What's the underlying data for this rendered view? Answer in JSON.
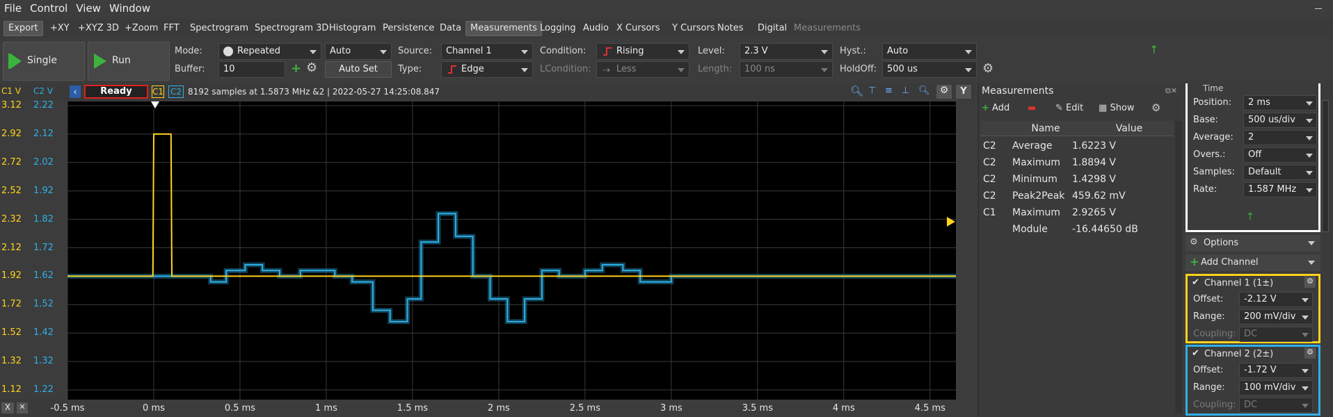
{
  "menu": [
    "File",
    "Control",
    "View",
    "Window"
  ],
  "tabs": [
    {
      "label": "Export",
      "active": false
    },
    {
      "label": "+XY"
    },
    {
      "label": "+XYZ 3D"
    },
    {
      "label": "+Zoom"
    },
    {
      "label": "FFT"
    },
    {
      "label": "Spectrogram"
    },
    {
      "label": "Spectrogram 3D"
    },
    {
      "label": "Histogram"
    },
    {
      "label": "Persistence"
    },
    {
      "label": "Data"
    },
    {
      "label": "Measurements"
    },
    {
      "label": "Logging"
    },
    {
      "label": "Audio"
    },
    {
      "label": "X Cursors"
    },
    {
      "label": "Y Cursors"
    },
    {
      "label": "Notes"
    },
    {
      "label": "Digital"
    },
    {
      "label": "Measurements"
    }
  ],
  "toolbar": {
    "single_label": "Single",
    "run_label": "Run",
    "mode_label": "Mode:",
    "mode_value": "Repeated",
    "mode_auto": "Auto",
    "buffer_label": "Buffer:",
    "buffer_value": "10",
    "autoset_label": "Auto Set",
    "source_label": "Source:",
    "source_value": "Channel 1",
    "type_label": "Type:",
    "type_value": "Edge",
    "condition_label": "Condition:",
    "condition_value": "Rising",
    "lcondition_label": "LCondition:",
    "lcondition_value": "Less",
    "level_label": "Level:",
    "level_value": "2.3 V",
    "length_label": "Length:",
    "length_value": "100 ns",
    "hyst_label": "Hyst.:",
    "hyst_value": "Auto",
    "holdoff_label": "HoldOff:",
    "holdoff_value": "500 us"
  },
  "scope": {
    "c1_axis_title": "C1 V",
    "c2_axis_title": "C2 V",
    "status": "Ready",
    "ch1_tag": "C1",
    "ch2_tag": "C2",
    "info": "8192 samples at 1.5873 MHz &2 | 2022-05-27 14:25:08.847",
    "c1_ticks": [
      "3.12",
      "2.92",
      "2.72",
      "2.52",
      "2.32",
      "2.12",
      "1.92",
      "1.72",
      "1.52",
      "1.32",
      "1.12"
    ],
    "c2_ticks": [
      "2.22",
      "2.12",
      "2.02",
      "1.92",
      "1.82",
      "1.72",
      "1.62",
      "1.52",
      "1.42",
      "1.32",
      "1.22"
    ],
    "x_ticks": [
      "-0.5 ms",
      "0 ms",
      "0.5 ms",
      "1 ms",
      "1.5 ms",
      "2 ms",
      "2.5 ms",
      "3 ms",
      "3.5 ms",
      "4 ms",
      "4.5 ms"
    ],
    "colors": {
      "c1": "#ffd21e",
      "c2": "#2fb0e8",
      "status_border": "#e02020"
    }
  },
  "chart_data": {
    "type": "line",
    "title": "",
    "xlabel": "",
    "ylabel": "",
    "x_unit": "ms",
    "xlim": [
      -0.5,
      4.65
    ],
    "series": [
      {
        "name": "C1",
        "axis": "C1 V",
        "ylim": [
          1.12,
          3.12
        ],
        "x": [
          -0.5,
          -0.005,
          0.0,
          0.1,
          0.105,
          4.65
        ],
        "y": [
          1.92,
          1.92,
          2.92,
          2.92,
          1.92,
          1.92
        ]
      },
      {
        "name": "C2",
        "axis": "C2 V",
        "ylim": [
          1.22,
          2.22
        ],
        "x": [
          -0.5,
          0.33,
          0.33,
          0.42,
          0.42,
          0.53,
          0.53,
          0.63,
          0.63,
          0.73,
          0.73,
          0.85,
          0.85,
          1.05,
          1.05,
          1.15,
          1.15,
          1.27,
          1.27,
          1.37,
          1.37,
          1.47,
          1.47,
          1.55,
          1.55,
          1.65,
          1.65,
          1.75,
          1.75,
          1.85,
          1.85,
          1.95,
          1.95,
          2.05,
          2.05,
          2.15,
          2.15,
          2.25,
          2.25,
          2.35,
          2.35,
          2.5,
          2.5,
          2.6,
          2.6,
          2.72,
          2.72,
          2.82,
          2.82,
          3.0,
          3.0,
          3.1,
          3.1,
          4.65
        ],
        "y": [
          1.62,
          1.62,
          1.6,
          1.6,
          1.64,
          1.64,
          1.66,
          1.66,
          1.64,
          1.64,
          1.62,
          1.62,
          1.64,
          1.64,
          1.62,
          1.62,
          1.6,
          1.6,
          1.5,
          1.5,
          1.46,
          1.46,
          1.54,
          1.54,
          1.74,
          1.74,
          1.84,
          1.84,
          1.76,
          1.76,
          1.62,
          1.62,
          1.54,
          1.54,
          1.46,
          1.46,
          1.54,
          1.54,
          1.64,
          1.64,
          1.62,
          1.62,
          1.64,
          1.64,
          1.66,
          1.66,
          1.64,
          1.64,
          1.6,
          1.6,
          1.62,
          1.62,
          1.62,
          1.62
        ]
      }
    ],
    "grid": true
  },
  "measurements": {
    "title": "Measurements",
    "add_label": "Add",
    "edit_label": "Edit",
    "show_label": "Show",
    "col_name": "Name",
    "col_value": "Value",
    "rows": [
      {
        "ch": "C2",
        "name": "Average",
        "value": "1.6223 V"
      },
      {
        "ch": "C2",
        "name": "Maximum",
        "value": "1.8894 V"
      },
      {
        "ch": "C2",
        "name": "Minimum",
        "value": "1.4298 V"
      },
      {
        "ch": "C2",
        "name": "Peak2Peak",
        "value": "459.62 mV"
      },
      {
        "ch": "C1",
        "name": "Maximum",
        "value": "2.9265 V"
      },
      {
        "ch": "",
        "name": "Module",
        "value": "-16.44650 dB"
      }
    ]
  },
  "settings": {
    "time_title": "Time",
    "position_label": "Position:",
    "position_value": "2 ms",
    "base_label": "Base:",
    "base_value": "500 us/div",
    "average_label": "Average:",
    "average_value": "2",
    "overs_label": "Overs.:",
    "overs_value": "Off",
    "samples_label": "Samples:",
    "samples_value": "Default",
    "rate_label": "Rate:",
    "rate_value": "1.587 MHz",
    "options_label": "Options",
    "add_channel_label": "Add Channel",
    "ch1_title": "Channel 1 (1±)",
    "ch1_offset": "-2.12 V",
    "ch1_range": "200 mV/div",
    "ch1_coupling": "DC",
    "ch2_title": "Channel 2 (2±)",
    "ch2_offset": "-1.72 V",
    "ch2_range": "100 mV/div",
    "ch2_coupling": "DC",
    "offset_label": "Offset:",
    "range_label": "Range:",
    "coupling_label": "Coupling:"
  }
}
